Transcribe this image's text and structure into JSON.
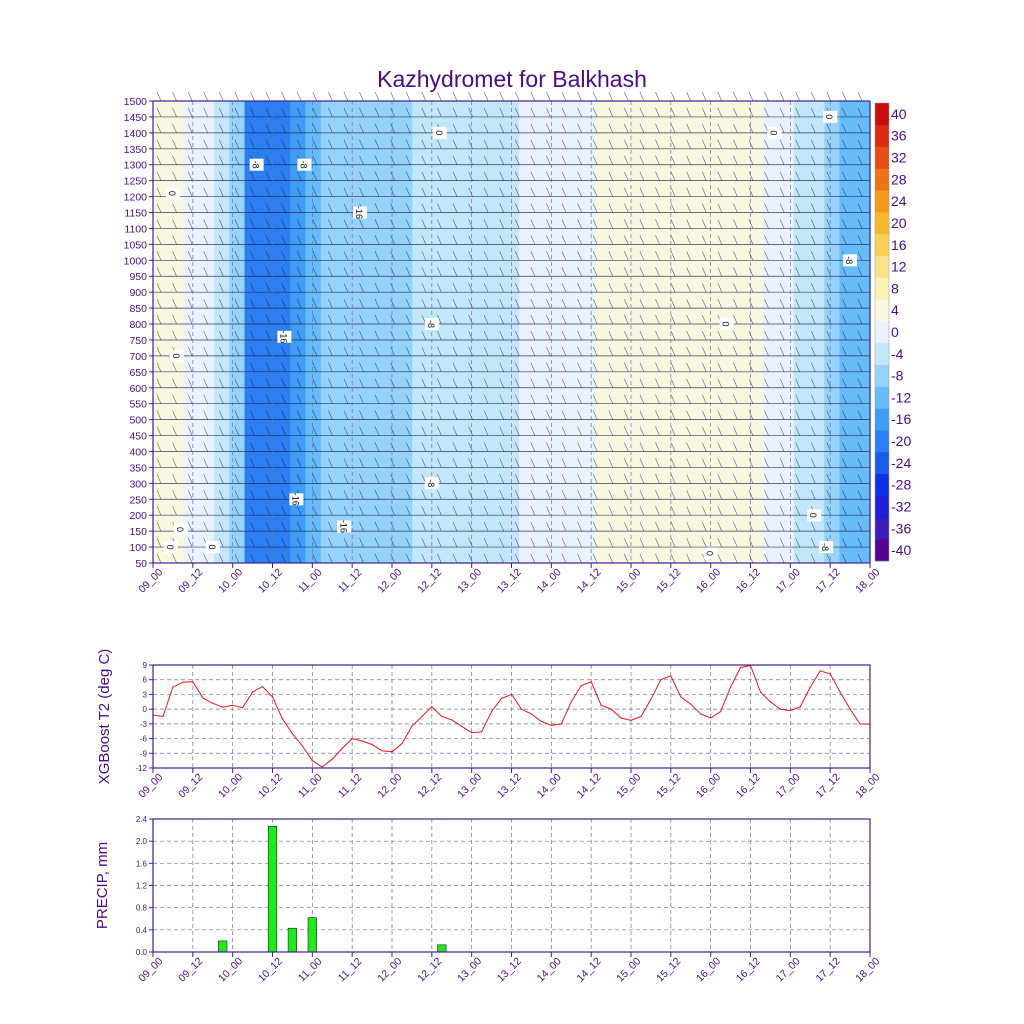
{
  "page_title": "Kazhydromet for Balkhash",
  "colors": {
    "frame": "#3f1f8f",
    "text": "#4b0c82",
    "grid": "#6f6fa8",
    "t2_line": "#e8191b",
    "precip_fill": "#22e81e",
    "precip_edge": "#1f1f1f",
    "barb": "#1a1a4d",
    "label_box": "#ffffff"
  },
  "chart_data": [
    {
      "id": "cross_section",
      "type": "heatmap",
      "title": "Kazhydromet for Balkhash",
      "xlabel": "",
      "ylabel": "",
      "x_ticks": [
        "09_00",
        "09_12",
        "10_00",
        "10_12",
        "11_00",
        "11_12",
        "12_00",
        "12_12",
        "13_00",
        "13_12",
        "14_00",
        "14_12",
        "15_00",
        "15_12",
        "16_00",
        "16_12",
        "17_00",
        "17_12",
        "18_00"
      ],
      "y_ticks": [
        50,
        100,
        150,
        200,
        250,
        300,
        350,
        400,
        450,
        500,
        550,
        600,
        650,
        700,
        750,
        800,
        850,
        900,
        950,
        1000,
        1050,
        1100,
        1150,
        1200,
        1250,
        1300,
        1350,
        1400,
        1450,
        1500
      ],
      "ylim": [
        50,
        1500
      ],
      "xlim": [
        0,
        18
      ],
      "colorbar": {
        "labels": [
          "-40",
          "-36",
          "-32",
          "-28",
          "-24",
          "-20",
          "-16",
          "-12",
          "-8",
          "-4",
          "0",
          "4",
          "8",
          "12",
          "16",
          "20",
          "24",
          "28",
          "32",
          "36",
          "40"
        ],
        "colors": [
          "#56008f",
          "#3b1fb8",
          "#1f1fd9",
          "#0f2fe8",
          "#1a5bec",
          "#2b7ff1",
          "#3f9df5",
          "#66bcf8",
          "#95d3fa",
          "#c2e7fb",
          "#eaf3fd",
          "#f8f8e0",
          "#fcf3b0",
          "#f9e28a",
          "#f8d057",
          "#f7b92b",
          "#f3991a",
          "#ef7417",
          "#e84d15",
          "#dd2a12",
          "#c80f0c"
        ],
        "bounds": [
          -42,
          -38,
          -34,
          -30,
          -26,
          -22,
          -18,
          -14,
          -10,
          -6,
          -2,
          2,
          6,
          10,
          14,
          18,
          22,
          26,
          30,
          34,
          38,
          42
        ]
      },
      "contour_labels": [
        "0",
        "0",
        "0",
        "0",
        "0",
        "0",
        "0",
        "0",
        "0",
        "0",
        "0",
        "-8",
        "-8",
        "-8",
        "-8",
        "-8",
        "-8",
        "-16",
        "-16",
        "-16",
        "-16"
      ],
      "column_min_temp": [
        2,
        2,
        1,
        -2,
        -6,
        -9,
        -20,
        -22,
        -21,
        -17,
        -12,
        -10,
        -9,
        -9,
        -8,
        -8,
        -7,
        -6,
        -6,
        -5,
        -4,
        -4,
        -3,
        -3,
        -2,
        -2,
        -1,
        -1,
        1,
        3,
        3,
        4,
        4,
        4,
        3,
        2,
        4,
        5,
        5,
        4,
        1,
        -1,
        -3,
        -5,
        -8,
        -12,
        -14
      ]
    },
    {
      "id": "t2",
      "type": "line",
      "ylabel": "XGBoost T2 (deg C)",
      "xlabel": "",
      "ylim": [
        -12,
        9
      ],
      "y_ticks": [
        "-12",
        "-9",
        "-6",
        "-3",
        "0",
        "3",
        "6",
        "9"
      ],
      "x_ticks": [
        "09_00",
        "09_12",
        "10_00",
        "10_12",
        "11_00",
        "11_12",
        "12_00",
        "12_12",
        "13_00",
        "13_12",
        "14_00",
        "14_12",
        "15_00",
        "15_12",
        "16_00",
        "16_12",
        "17_00",
        "17_12",
        "18_00"
      ],
      "series": [
        {
          "name": "T2",
          "x": [
            0,
            0.5,
            1,
            1.5,
            2,
            2.5,
            3,
            3.5,
            4,
            4.5,
            5,
            5.5,
            6,
            6.5,
            7,
            7.5,
            8,
            8.5,
            9,
            9.5,
            10,
            10.5,
            11,
            11.5,
            12,
            12.5,
            13,
            13.5,
            14,
            14.5,
            15,
            15.5,
            16,
            16.5,
            17,
            17.5,
            18,
            18.5,
            19,
            19.5,
            20,
            20.5,
            21,
            21.5,
            22,
            22.5,
            23,
            23.5,
            24,
            24.5,
            25,
            25.5,
            26,
            26.5,
            27,
            27.5,
            28,
            28.5,
            29,
            29.5,
            30,
            30.5,
            31,
            31.5,
            32,
            32.5,
            33,
            33.5,
            34,
            34.5,
            35,
            35.5,
            36
          ],
          "values": [
            -1.2,
            -1.5,
            4.5,
            5.5,
            5.6,
            2.3,
            1.2,
            0.4,
            0.8,
            0.3,
            3.5,
            4.6,
            2.5,
            -2.0,
            -5.0,
            -7.5,
            -10.5,
            -11.8,
            -10.2,
            -8.0,
            -6.0,
            -6.5,
            -7.2,
            -8.5,
            -8.7,
            -7.0,
            -3.5,
            -1.5,
            0.5,
            -1.5,
            -2.2,
            -3.5,
            -4.8,
            -4.6,
            -0.5,
            2.2,
            3.0,
            0.0,
            -1.0,
            -2.5,
            -3.3,
            -3.0,
            1.5,
            4.8,
            5.6,
            0.8,
            0.0,
            -1.8,
            -2.3,
            -1.5,
            2.0,
            6.0,
            6.8,
            2.5,
            1.0,
            -1.0,
            -1.8,
            -0.5,
            4.5,
            8.5,
            8.9,
            3.5,
            1.5,
            0.0,
            -0.3,
            0.5,
            4.5,
            7.8,
            7.2,
            3.5,
            0.0,
            -3.0,
            -3.1
          ]
        }
      ]
    },
    {
      "id": "precip",
      "type": "bar",
      "ylabel": "PRECIP, mm",
      "xlabel": "",
      "ylim": [
        0,
        2.4
      ],
      "y_ticks": [
        "0.0",
        "0.4",
        "0.8",
        "1.2",
        "1.6",
        "2.0",
        "2.4"
      ],
      "x_ticks": [
        "09_00",
        "09_12",
        "10_00",
        "10_12",
        "11_00",
        "11_12",
        "12_00",
        "12_12",
        "13_00",
        "13_12",
        "14_00",
        "14_12",
        "15_00",
        "15_12",
        "16_00",
        "16_12",
        "17_00",
        "17_12",
        "18_00"
      ],
      "x": [
        3.5,
        6,
        7,
        8,
        14.5
      ],
      "values": [
        0.2,
        2.27,
        0.43,
        0.62,
        0.13
      ]
    }
  ]
}
